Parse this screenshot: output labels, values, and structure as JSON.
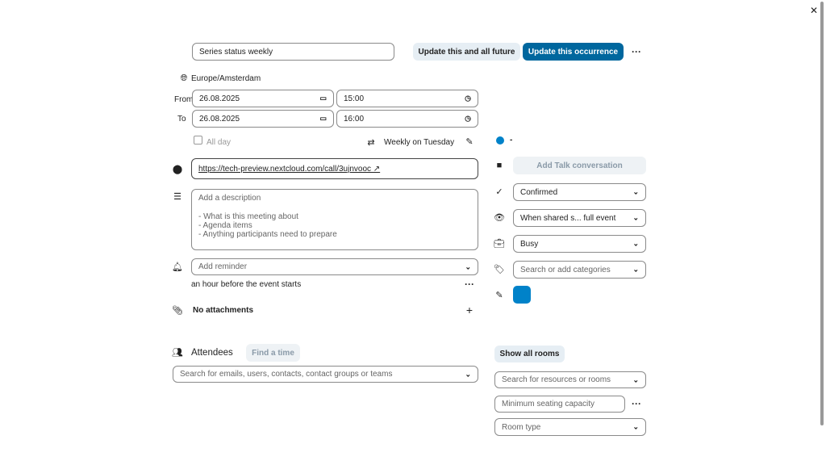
{
  "title": "Series status weekly",
  "buttons": {
    "update_future": "Update this and all future",
    "update_occurrence": "Update this occurrence",
    "more": "···",
    "close": "✕"
  },
  "timezone": "Europe/Amsterdam",
  "from": {
    "label": "From",
    "date": "26.08.2025",
    "time": "15:00"
  },
  "to": {
    "label": "To",
    "date": "26.08.2025",
    "time": "16:00"
  },
  "all_day": "All day",
  "recurrence": "Weekly on Tuesday",
  "calendar": {
    "name": "-",
    "color": "#0082c9"
  },
  "location": "https://tech-preview.nextcloud.com/call/3ujnvooc ↗",
  "description": {
    "placeholder": "Add a description\n\n- What is this meeting about\n- Agenda items\n- Anything participants need to prepare"
  },
  "talk": "Add Talk conversation",
  "status": "Confirmed",
  "visibility": "When shared s... full event",
  "availability": "Busy",
  "categories_placeholder": "Search or add categories",
  "event_color": "#0082c9",
  "reminder": {
    "placeholder": "Add reminder",
    "item": "an hour before the event starts"
  },
  "attachments": "No attachments",
  "attendees": {
    "title": "Attendees",
    "find_time": "Find a time",
    "search_placeholder": "Search for emails, users, contacts, contact groups or teams"
  },
  "rooms": {
    "show_all": "Show all rooms",
    "search_placeholder": "Search for resources or rooms",
    "capacity_placeholder": "Minimum seating capacity",
    "room_type": "Room type"
  }
}
